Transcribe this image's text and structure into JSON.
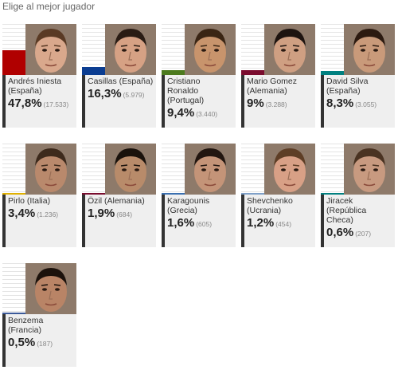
{
  "poll": {
    "title": "Elige al mejor jugador"
  },
  "colors": {
    "Spain": "#b00000",
    "Portugal": "#4c7a1e",
    "Germany": "#7a0c2e",
    "Italy": "#e0b000",
    "Greece": "#3a6fb0",
    "Ukraine": "#7fa0c8",
    "Czech": "#008080",
    "France": "#3c5a9a"
  },
  "chart_data": {
    "type": "bar",
    "title": "Elige al mejor jugador",
    "ylim": [
      0,
      100
    ],
    "series": [
      {
        "values": [
          47.8,
          16.3,
          9.4,
          9,
          8.3,
          3.4,
          1.9,
          1.6,
          1.2,
          0.6,
          0.5
        ]
      }
    ],
    "players": [
      {
        "name": "Andrés Iniesta (España)",
        "percent_label": "47,8%",
        "votes_label": "(17.533)",
        "percent": 47.8,
        "color": "#b00000",
        "skin": "#d9a88c",
        "hair": "#5a3a24"
      },
      {
        "name": "Casillas (España)",
        "percent_label": "16,3%",
        "votes_label": "(5.979)",
        "percent": 16.3,
        "color": "#0b3d91",
        "skin": "#d6a184",
        "hair": "#2a1c14"
      },
      {
        "name": "Cristiano Ronaldo (Portugal)",
        "percent_label": "9,4%",
        "votes_label": "(3.440)",
        "percent": 9.4,
        "color": "#4c7a1e",
        "skin": "#c8946c",
        "hair": "#3a2514"
      },
      {
        "name": "Mario Gomez (Alemania)",
        "percent_label": "9%",
        "votes_label": "(3.288)",
        "percent": 9,
        "color": "#7a0c2e",
        "skin": "#cf9f82",
        "hair": "#1e1410"
      },
      {
        "name": "David Silva (España)",
        "percent_label": "8,3%",
        "votes_label": "(3.055)",
        "percent": 8.3,
        "color": "#008080",
        "skin": "#c99a7a",
        "hair": "#2c1a10"
      },
      {
        "name": "Pirlo (Italia)",
        "percent_label": "3,4%",
        "votes_label": "(1.236)",
        "percent": 3.4,
        "color": "#e0b000",
        "skin": "#b9896c",
        "hair": "#3d2a1c"
      },
      {
        "name": "Özil (Alemania)",
        "percent_label": "1,9%",
        "votes_label": "(684)",
        "percent": 1.9,
        "color": "#7a0c2e",
        "skin": "#b88b6a",
        "hair": "#1a120c"
      },
      {
        "name": "Karagounis (Grecia)",
        "percent_label": "1,6%",
        "votes_label": "(605)",
        "percent": 1.6,
        "color": "#3a6fb0",
        "skin": "#c49478",
        "hair": "#221610"
      },
      {
        "name": "Shevchenko (Ucrania)",
        "percent_label": "1,2%",
        "votes_label": "(454)",
        "percent": 1.2,
        "color": "#7fa0c8",
        "skin": "#d8a086",
        "hair": "#5e3e26"
      },
      {
        "name": "Jiracek (República Checa)",
        "percent_label": "0,6%",
        "votes_label": "(207)",
        "percent": 0.6,
        "color": "#008080",
        "skin": "#c89a80",
        "hair": "#4a3322"
      },
      {
        "name": "Benzema (Francia)",
        "percent_label": "0,5%",
        "votes_label": "(187)",
        "percent": 0.5,
        "color": "#3c5a9a",
        "skin": "#b98466",
        "hair": "#1c120c"
      }
    ]
  }
}
